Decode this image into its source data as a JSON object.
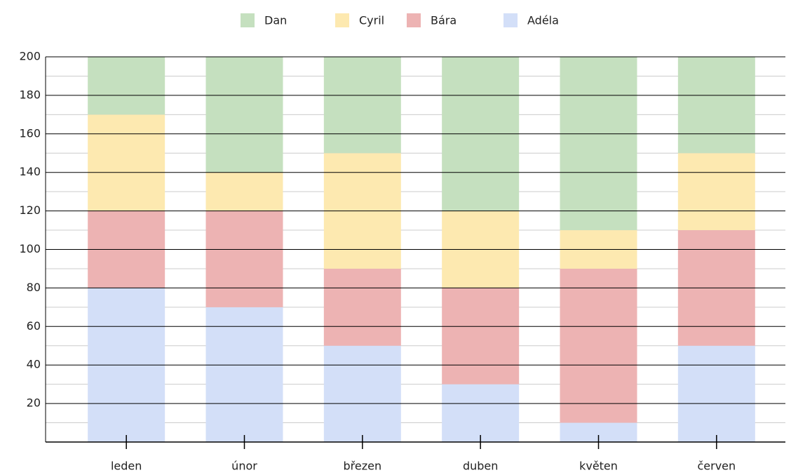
{
  "chart_data": {
    "type": "stacked_bar",
    "categories": [
      "leden",
      "únor",
      "březen",
      "duben",
      "květen",
      "červen"
    ],
    "series": [
      {
        "name": "Adéla",
        "color": "#d3dff8",
        "values": [
          80,
          70,
          50,
          30,
          10,
          50
        ]
      },
      {
        "name": "Bára",
        "color": "#edb3b3",
        "values": [
          40,
          50,
          40,
          50,
          80,
          60
        ]
      },
      {
        "name": "Cyril",
        "color": "#fde9b0",
        "values": [
          50,
          20,
          60,
          40,
          20,
          40
        ]
      },
      {
        "name": "Dan",
        "color": "#c5e0bf",
        "values": [
          30,
          60,
          50,
          80,
          90,
          50
        ]
      }
    ],
    "ylim": [
      0,
      200
    ],
    "yticks": [
      20,
      40,
      60,
      80,
      100,
      120,
      140,
      160,
      180,
      200
    ],
    "minor_yticks": [
      10,
      30,
      50,
      70,
      90,
      110,
      130,
      150,
      170,
      190
    ],
    "grid": true,
    "legend": "top"
  }
}
